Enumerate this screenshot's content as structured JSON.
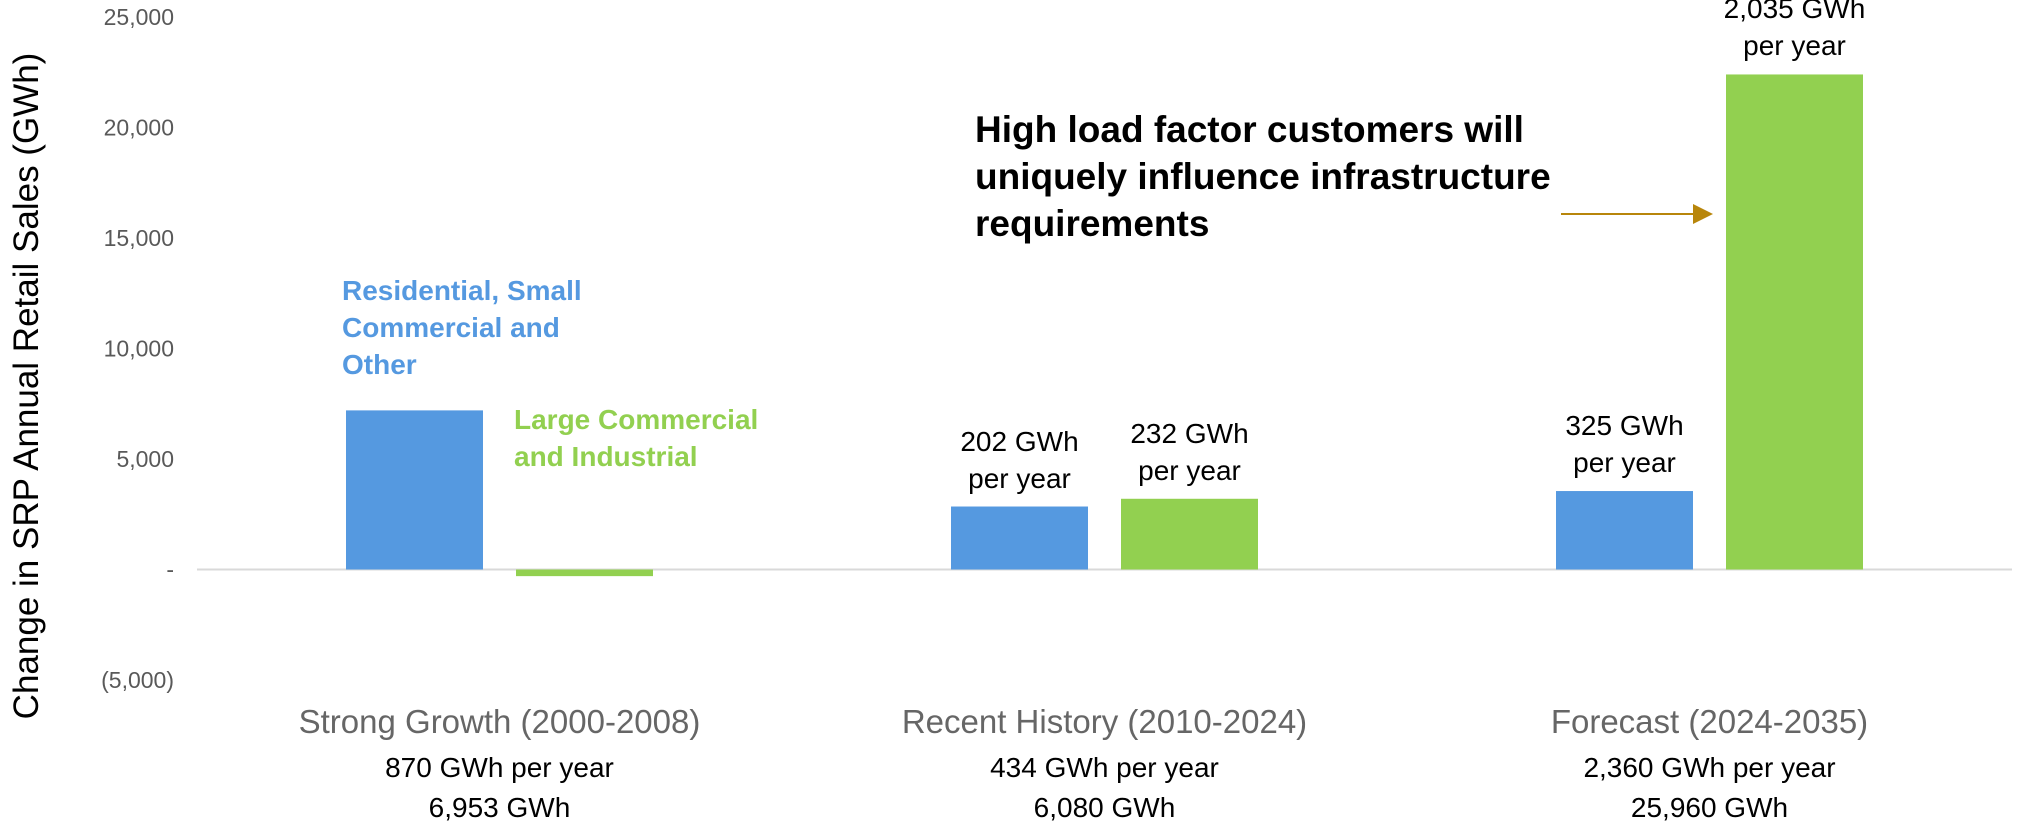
{
  "chart_data": {
    "type": "bar",
    "y_label": "Change in SRP Annual Retail Sales (GWh)",
    "annotation": "High load factor customers will uniquely influence infrastructure requirements",
    "categories": [
      "Strong Growth (2000-2008)",
      "Recent History (2010-2024)",
      "Forecast (2024-2035)"
    ],
    "category_sublabels": [
      [
        "870 GWh per year",
        "6,953 GWh"
      ],
      [
        "434 GWh per year",
        "6,080 GWh"
      ],
      [
        "2,360 GWh per year",
        "25,960 GWh"
      ]
    ],
    "series": [
      {
        "name": "Residential, Small Commercial and Other",
        "color": "#5599e0",
        "values": [
          7200,
          2850,
          3550
        ],
        "bar_labels": [
          null,
          "202 GWh per year",
          "325 GWh per year"
        ]
      },
      {
        "name": "Large Commercial and Industrial",
        "color": "#92d050",
        "values": [
          -300,
          3200,
          22400
        ],
        "bar_labels": [
          null,
          "232 GWh per year",
          "2,035 GWh per year"
        ]
      }
    ],
    "ylim": [
      -5000,
      25000
    ],
    "yticks": [
      {
        "value": -5000,
        "label": "(5,000)"
      },
      {
        "value": 0,
        "label": "-"
      },
      {
        "value": 5000,
        "label": "5,000"
      },
      {
        "value": 10000,
        "label": "10,000"
      },
      {
        "value": 15000,
        "label": "15,000"
      },
      {
        "value": 20000,
        "label": "20,000"
      },
      {
        "value": 25000,
        "label": "25,000"
      }
    ],
    "grid": false
  }
}
